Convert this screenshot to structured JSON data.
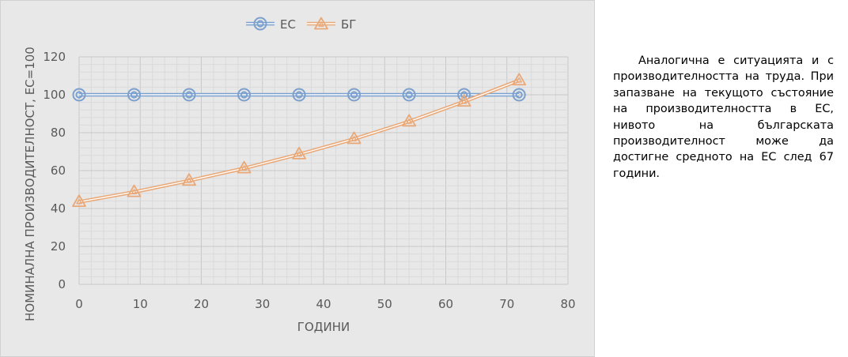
{
  "colors": {
    "plot_background": "#e8e8e8",
    "grid_major": "#c8c8c8",
    "grid_minor": "#dadada",
    "series_ec": "#7ba0cd",
    "series_bg": "#e9a877"
  },
  "chart_data": {
    "type": "line",
    "title": "",
    "xlabel": "ГОДИНИ",
    "ylabel": "НОМИНАЛНА ПРОИЗВОДИТЕЛНОСТ, ЕС=100",
    "xlim": [
      0,
      80
    ],
    "ylim": [
      0,
      120
    ],
    "x_ticks": [
      "0",
      "10",
      "20",
      "30",
      "40",
      "50",
      "60",
      "70",
      "80"
    ],
    "y_ticks": [
      "0",
      "20",
      "40",
      "60",
      "80",
      "100",
      "120"
    ],
    "grid": true,
    "minor_grid": true,
    "legend_position": "top",
    "x": [
      0,
      9,
      18,
      27,
      36,
      45,
      54,
      63,
      72
    ],
    "series": [
      {
        "name": "ЕС",
        "marker": "circle",
        "values": [
          100,
          100,
          100,
          100,
          100,
          100,
          100,
          100,
          100
        ]
      },
      {
        "name": "БГ",
        "marker": "triangle",
        "values": [
          43.5,
          48.7,
          54.7,
          61.2,
          68.6,
          76.7,
          85.9,
          96.4,
          107.6
        ]
      }
    ]
  },
  "side_text": "Аналогична е ситуацията и с производителността на труда. При запазване на текущото състояние на производителността в ЕС, нивото на българската производителност може да достигне средното на ЕС след 67 години."
}
